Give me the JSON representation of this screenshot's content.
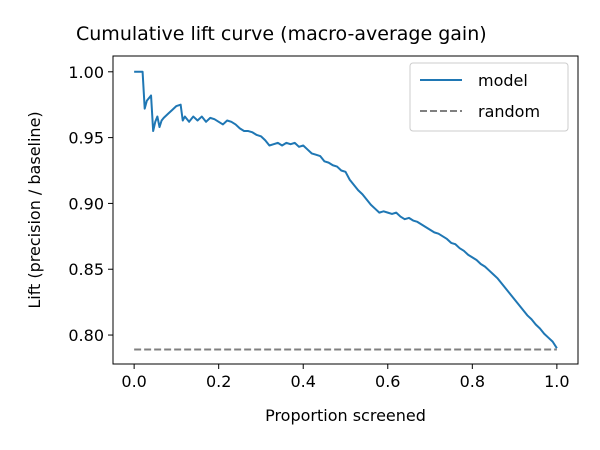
{
  "chart_data": {
    "type": "line",
    "title": "Cumulative lift curve (macro-average gain)",
    "xlabel": "Proportion screened",
    "ylabel": "Lift (precision / baseline)",
    "xlim": [
      -0.05,
      1.05
    ],
    "ylim": [
      0.778,
      1.012
    ],
    "xticks": [
      0.0,
      0.2,
      0.4,
      0.6,
      0.8,
      1.0
    ],
    "xtick_labels": [
      "0.0",
      "0.2",
      "0.4",
      "0.6",
      "0.8",
      "1.0"
    ],
    "yticks": [
      0.8,
      0.85,
      0.9,
      0.95,
      1.0
    ],
    "ytick_labels": [
      "0.80",
      "0.85",
      "0.90",
      "0.95",
      "1.00"
    ],
    "grid": false,
    "legend_position": "top-right",
    "series": [
      {
        "name": "model",
        "color": "#1f77b4",
        "style": "solid",
        "x": [
          0.0,
          0.01,
          0.02,
          0.025,
          0.03,
          0.04,
          0.045,
          0.05,
          0.055,
          0.06,
          0.065,
          0.07,
          0.08,
          0.09,
          0.1,
          0.11,
          0.115,
          0.12,
          0.13,
          0.14,
          0.15,
          0.16,
          0.17,
          0.18,
          0.19,
          0.2,
          0.21,
          0.22,
          0.23,
          0.24,
          0.25,
          0.26,
          0.27,
          0.28,
          0.29,
          0.3,
          0.31,
          0.32,
          0.33,
          0.34,
          0.35,
          0.36,
          0.37,
          0.38,
          0.39,
          0.4,
          0.41,
          0.42,
          0.43,
          0.44,
          0.45,
          0.46,
          0.47,
          0.48,
          0.49,
          0.5,
          0.51,
          0.52,
          0.53,
          0.54,
          0.55,
          0.56,
          0.57,
          0.58,
          0.59,
          0.6,
          0.61,
          0.62,
          0.63,
          0.64,
          0.65,
          0.66,
          0.67,
          0.68,
          0.69,
          0.7,
          0.71,
          0.72,
          0.73,
          0.74,
          0.75,
          0.76,
          0.77,
          0.78,
          0.79,
          0.8,
          0.81,
          0.82,
          0.83,
          0.84,
          0.85,
          0.86,
          0.87,
          0.88,
          0.89,
          0.9,
          0.91,
          0.92,
          0.93,
          0.94,
          0.95,
          0.96,
          0.97,
          0.98,
          0.99,
          1.0
        ],
        "y": [
          1.0,
          1.0,
          1.0,
          0.972,
          0.978,
          0.982,
          0.955,
          0.962,
          0.966,
          0.958,
          0.963,
          0.965,
          0.968,
          0.971,
          0.974,
          0.975,
          0.963,
          0.966,
          0.962,
          0.966,
          0.963,
          0.966,
          0.962,
          0.965,
          0.964,
          0.962,
          0.96,
          0.963,
          0.962,
          0.96,
          0.957,
          0.955,
          0.955,
          0.954,
          0.952,
          0.951,
          0.948,
          0.944,
          0.945,
          0.946,
          0.944,
          0.946,
          0.945,
          0.946,
          0.943,
          0.944,
          0.941,
          0.938,
          0.937,
          0.936,
          0.932,
          0.931,
          0.929,
          0.928,
          0.925,
          0.924,
          0.918,
          0.914,
          0.91,
          0.907,
          0.903,
          0.899,
          0.896,
          0.893,
          0.894,
          0.893,
          0.892,
          0.893,
          0.89,
          0.888,
          0.889,
          0.887,
          0.886,
          0.884,
          0.882,
          0.88,
          0.878,
          0.877,
          0.875,
          0.873,
          0.87,
          0.869,
          0.866,
          0.864,
          0.861,
          0.859,
          0.857,
          0.854,
          0.852,
          0.849,
          0.846,
          0.843,
          0.839,
          0.835,
          0.831,
          0.827,
          0.823,
          0.819,
          0.815,
          0.812,
          0.808,
          0.805,
          0.801,
          0.798,
          0.795,
          0.79
        ]
      },
      {
        "name": "random",
        "color": "#808080",
        "style": "dashed",
        "x": [
          0.0,
          1.0
        ],
        "y": [
          0.789,
          0.789
        ]
      }
    ]
  }
}
